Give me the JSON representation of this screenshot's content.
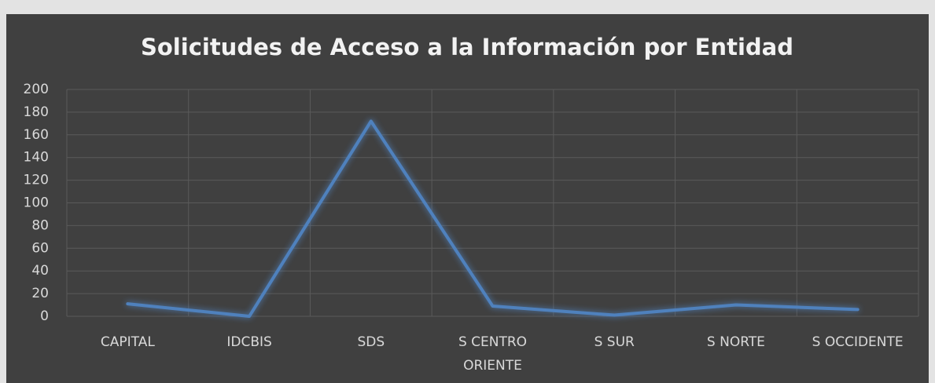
{
  "chart_data": {
    "type": "line",
    "title": "Solicitudes de Acceso a la Información por Entidad",
    "categories": [
      "CAPITAL",
      "IDCBIS",
      "SDS",
      "S CENTRO ORIENTE",
      "S SUR",
      "S NORTE",
      "S OCCIDENTE"
    ],
    "values": [
      11,
      0,
      172,
      9,
      1,
      10,
      6
    ],
    "color": "#4f81bd",
    "ylim": [
      0,
      200
    ],
    "yticks": [
      0,
      20,
      40,
      60,
      80,
      100,
      120,
      140,
      160,
      180,
      200
    ],
    "grid": true
  }
}
